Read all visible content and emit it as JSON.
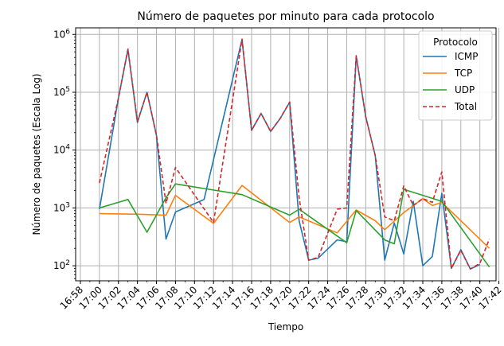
{
  "chart_data": {
    "type": "line",
    "title": "Número de paquetes por minuto para cada protocolo",
    "xlabel": "Tiempo",
    "ylabel": "Número de paquetes (Escala Log)",
    "yscale": "log",
    "ylim": [
      55,
      1300000
    ],
    "xlim": [
      "16:57.5",
      "17:41.7"
    ],
    "xticks": [
      "16:58",
      "17:00",
      "17:02",
      "17:04",
      "17:06",
      "17:08",
      "17:10",
      "17:12",
      "17:14",
      "17:16",
      "17:18",
      "17:20",
      "17:22",
      "17:24",
      "17:26",
      "17:28",
      "17:30",
      "17:32",
      "17:34",
      "17:36",
      "17:38",
      "17:40",
      "17:42"
    ],
    "yticks": [
      {
        "value": 100,
        "label": "10^2"
      },
      {
        "value": 1000,
        "label": "10^3"
      },
      {
        "value": 10000,
        "label": "10^4"
      },
      {
        "value": 100000,
        "label": "10^5"
      },
      {
        "value": 1000000,
        "label": "10^6"
      }
    ],
    "grid": true,
    "legend": {
      "title": "Protocolo",
      "position": "top-right"
    },
    "series": [
      {
        "name": "ICMP",
        "color": "#1f77b4",
        "dash": "solid",
        "points": [
          [
            "17:00",
            950
          ],
          [
            "17:02",
            80000
          ],
          [
            "17:03",
            550000
          ],
          [
            "17:04",
            30000
          ],
          [
            "17:05",
            100000
          ],
          [
            "17:06",
            18000
          ],
          [
            "17:07",
            290
          ],
          [
            "17:08",
            850
          ],
          [
            "17:11",
            1400
          ],
          [
            "17:15",
            820000
          ],
          [
            "17:16",
            22000
          ],
          [
            "17:17",
            43000
          ],
          [
            "17:18",
            21000
          ],
          [
            "17:19",
            35000
          ],
          [
            "17:20",
            67000
          ],
          [
            "17:21",
            600
          ],
          [
            "17:22",
            125
          ],
          [
            "17:23",
            135
          ],
          [
            "17:25",
            280
          ],
          [
            "17:26",
            260
          ],
          [
            "17:27",
            420000
          ],
          [
            "17:28",
            38000
          ],
          [
            "17:29",
            8000
          ],
          [
            "17:30",
            125
          ],
          [
            "17:31",
            550
          ],
          [
            "17:32",
            160
          ],
          [
            "17:33",
            1300
          ],
          [
            "17:34",
            100
          ],
          [
            "17:35",
            145
          ],
          [
            "17:36",
            1800
          ],
          [
            "17:37",
            90
          ],
          [
            "17:38",
            190
          ],
          [
            "17:39",
            88
          ],
          [
            "17:40",
            105
          ]
        ]
      },
      {
        "name": "TCP",
        "color": "#ff7f0e",
        "dash": "solid",
        "points": [
          [
            "17:00",
            800
          ],
          [
            "17:04",
            780
          ],
          [
            "17:07",
            750
          ],
          [
            "17:08",
            1650
          ],
          [
            "17:12",
            540
          ],
          [
            "17:15",
            2450
          ],
          [
            "17:20",
            560
          ],
          [
            "17:21",
            700
          ],
          [
            "17:25",
            370
          ],
          [
            "17:27",
            920
          ],
          [
            "17:29",
            600
          ],
          [
            "17:30",
            420
          ],
          [
            "17:32",
            830
          ],
          [
            "17:34",
            1450
          ],
          [
            "17:35",
            1100
          ],
          [
            "17:36",
            1250
          ],
          [
            "17:41",
            200
          ]
        ]
      },
      {
        "name": "UDP",
        "color": "#2ca02c",
        "dash": "solid",
        "points": [
          [
            "17:00",
            1000
          ],
          [
            "17:03",
            1400
          ],
          [
            "17:05",
            380
          ],
          [
            "17:07",
            1500
          ],
          [
            "17:08",
            2600
          ],
          [
            "17:15",
            1700
          ],
          [
            "17:20",
            750
          ],
          [
            "17:21",
            950
          ],
          [
            "17:26",
            250
          ],
          [
            "17:27",
            900
          ],
          [
            "17:30",
            280
          ],
          [
            "17:31",
            240
          ],
          [
            "17:32",
            2100
          ],
          [
            "17:36",
            1300
          ],
          [
            "17:41",
            95
          ]
        ]
      },
      {
        "name": "Total",
        "color": "#d62728",
        "dash": "dashed",
        "points": [
          [
            "17:00",
            2700
          ],
          [
            "17:02",
            80000
          ],
          [
            "17:03",
            560000
          ],
          [
            "17:04",
            31000
          ],
          [
            "17:05",
            100000
          ],
          [
            "17:06",
            18000
          ],
          [
            "17:07",
            1200
          ],
          [
            "17:08",
            5000
          ],
          [
            "17:12",
            560
          ],
          [
            "17:15",
            830000
          ],
          [
            "17:16",
            22000
          ],
          [
            "17:17",
            43000
          ],
          [
            "17:18",
            21000
          ],
          [
            "17:19",
            35000
          ],
          [
            "17:20",
            68000
          ],
          [
            "17:21",
            1500
          ],
          [
            "17:22",
            125
          ],
          [
            "17:23",
            140
          ],
          [
            "17:25",
            950
          ],
          [
            "17:26",
            1000
          ],
          [
            "17:27",
            430000
          ],
          [
            "17:28",
            38000
          ],
          [
            "17:29",
            8000
          ],
          [
            "17:30",
            700
          ],
          [
            "17:31",
            600
          ],
          [
            "17:32",
            2400
          ],
          [
            "17:33",
            1100
          ],
          [
            "17:34",
            1450
          ],
          [
            "17:35",
            1250
          ],
          [
            "17:36",
            4200
          ],
          [
            "17:37",
            90
          ],
          [
            "17:38",
            185
          ],
          [
            "17:39",
            88
          ],
          [
            "17:40",
            110
          ],
          [
            "17:41",
            290
          ]
        ]
      }
    ]
  }
}
